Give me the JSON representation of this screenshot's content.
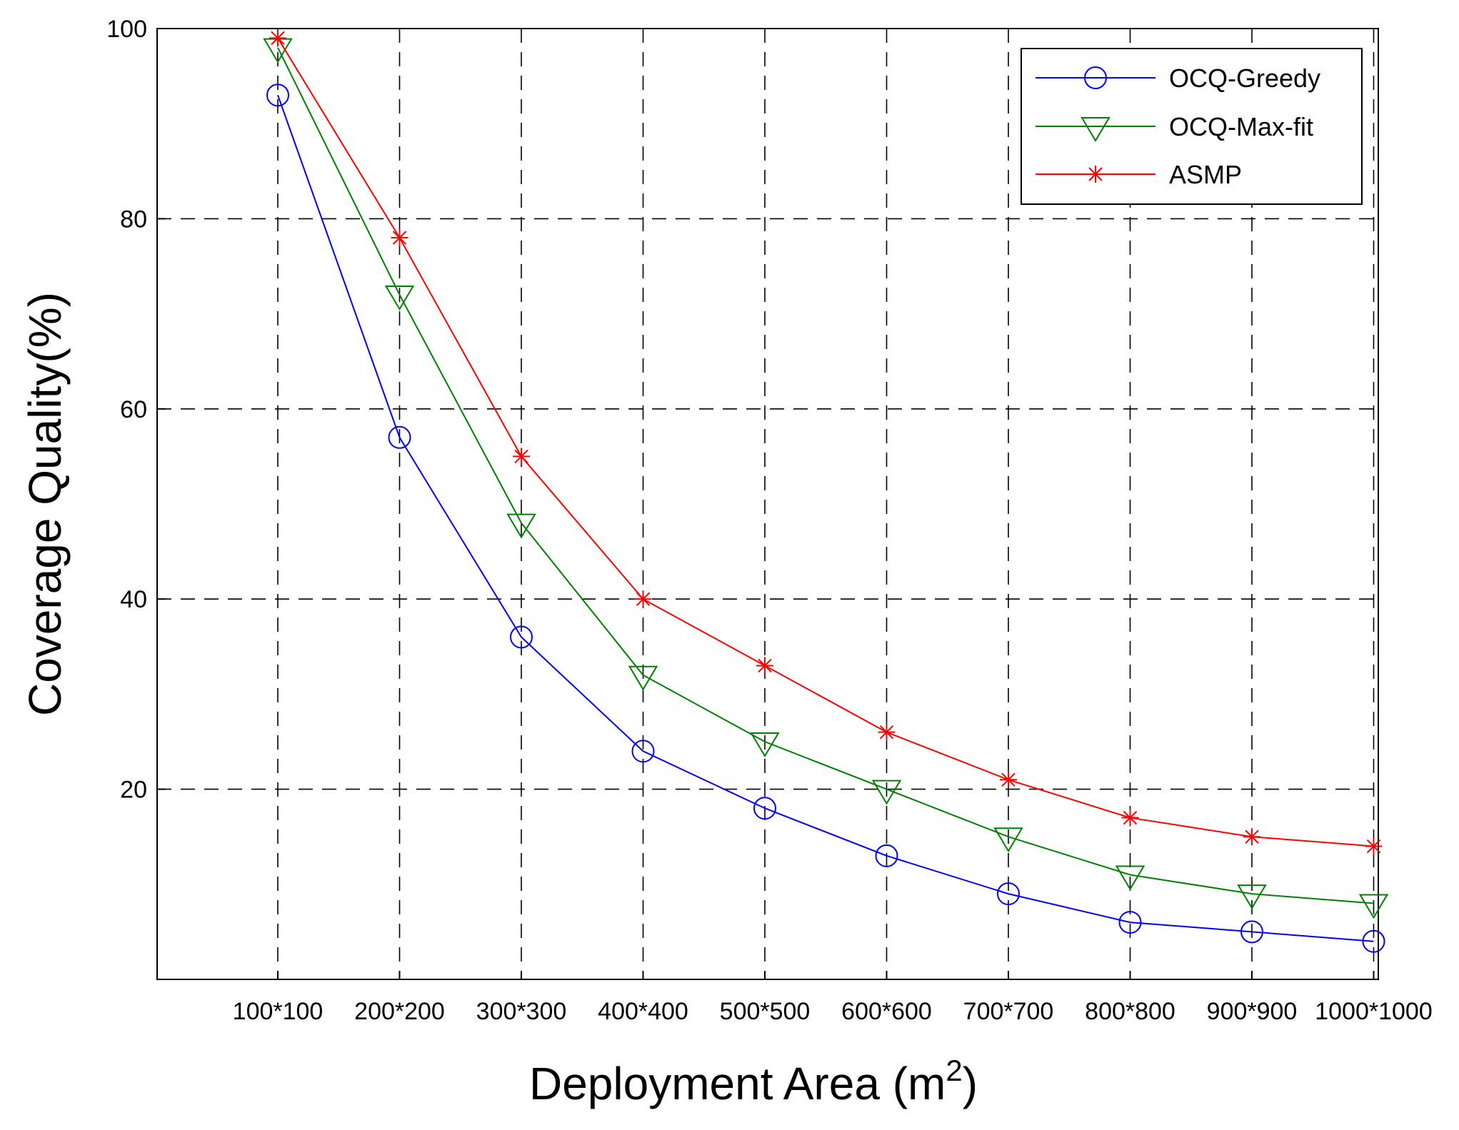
{
  "chart_data": {
    "type": "line",
    "title": "",
    "xlabel": "Deployment Area (m",
    "xlabel_superscript": "2",
    "xlabel_close": ")",
    "ylabel": "Coverage Quality(%)",
    "categories": [
      "100*100",
      "200*200",
      "300*300",
      "400*400",
      "500*500",
      "600*600",
      "700*700",
      "800*800",
      "900*900",
      "1000*1000"
    ],
    "ylim": [
      0,
      100
    ],
    "yticks": [
      20,
      40,
      60,
      80,
      100
    ],
    "grid": true,
    "legend_position": "top-right",
    "series": [
      {
        "name": "OCQ-Greedy",
        "color": "#0000ff",
        "marker": "circle",
        "values": [
          93,
          57,
          36,
          24,
          18,
          13,
          9,
          6,
          5,
          4
        ]
      },
      {
        "name": "OCQ-Max-fit",
        "color": "#008000",
        "marker": "triangle-down",
        "values": [
          98,
          72,
          48,
          32,
          25,
          20,
          15,
          11,
          9,
          8
        ]
      },
      {
        "name": "ASMP",
        "color": "#ff0000",
        "marker": "asterisk",
        "values": [
          99,
          78,
          55,
          40,
          33,
          26,
          21,
          17,
          15,
          14
        ]
      }
    ]
  }
}
